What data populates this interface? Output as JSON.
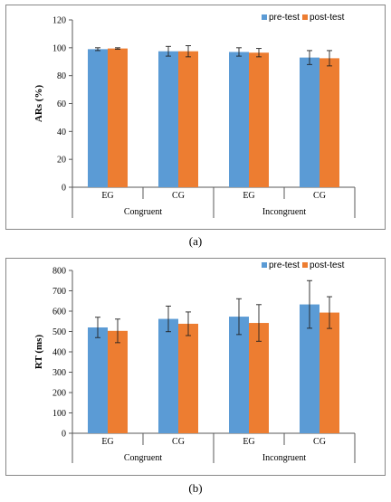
{
  "colors": {
    "pre": "#5b9bd5",
    "post": "#ed7d31",
    "frame": "#888888",
    "axis": "#595959"
  },
  "chart_data": [
    {
      "type": "bar",
      "caption": "(a)",
      "ylabel": "ARs (%)",
      "ylim": [
        0,
        120
      ],
      "yticks": [
        "0",
        "20",
        "40",
        "60",
        "80",
        "100",
        "120"
      ],
      "grid": false,
      "legend_position": "top-right",
      "categories": [
        "EG",
        "CG",
        "EG",
        "CG"
      ],
      "groups": [
        "Congruent",
        "Incongruent"
      ],
      "series": [
        {
          "name": "pre-test",
          "values": [
            99,
            97.5,
            97,
            93
          ],
          "errors": [
            1,
            3.5,
            3,
            5
          ]
        },
        {
          "name": "post-test",
          "values": [
            99.5,
            97.5,
            96.5,
            92.5
          ],
          "errors": [
            0.5,
            4,
            3,
            5.5
          ]
        }
      ]
    },
    {
      "type": "bar",
      "caption": "(b)",
      "ylabel": "RT (ms)",
      "ylim": [
        0,
        800
      ],
      "yticks": [
        "0",
        "100",
        "200",
        "300",
        "400",
        "500",
        "600",
        "700",
        "800"
      ],
      "grid": false,
      "legend_position": "top-right",
      "categories": [
        "EG",
        "CG",
        "EG",
        "CG"
      ],
      "groups": [
        "Congruent",
        "Incongruent"
      ],
      "series": [
        {
          "name": "pre-test",
          "values": [
            520,
            562,
            573,
            633
          ],
          "errors": [
            50,
            63,
            88,
            117
          ]
        },
        {
          "name": "post-test",
          "values": [
            503,
            538,
            542,
            593
          ],
          "errors": [
            58,
            58,
            90,
            78
          ]
        }
      ]
    }
  ]
}
